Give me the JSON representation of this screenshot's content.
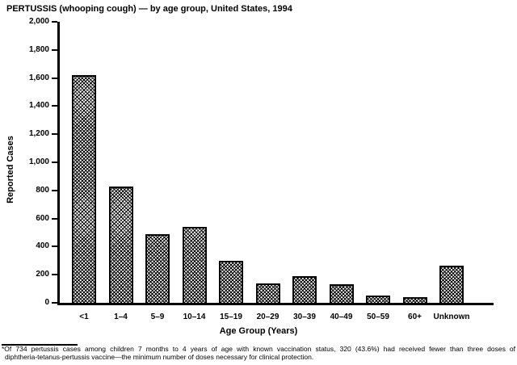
{
  "title": "PERTUSSIS (whooping cough) — by age group, United States, 1994",
  "chart_data": {
    "type": "bar",
    "title": "PERTUSSIS (whooping cough) — by age group, United States, 1994",
    "xlabel": "Age Group (Years)",
    "ylabel": "Reported Cases",
    "categories": [
      "<1",
      "1–4",
      "5–9",
      "10–14",
      "15–19",
      "20–29",
      "30–39",
      "40–49",
      "50–59",
      "60+",
      "Unknown"
    ],
    "values": [
      1620,
      830,
      490,
      540,
      300,
      140,
      190,
      130,
      50,
      40,
      265
    ],
    "ylim": [
      0,
      2000
    ],
    "ytick_interval": 200,
    "ytick_labels": [
      "0",
      "200",
      "400",
      "600",
      "800",
      "1,000",
      "1,200",
      "1,400",
      "1,600",
      "1,800",
      "2,000"
    ],
    "grid": false,
    "legend": "none",
    "bar_fill_style": "black-and-white crosshatch dither",
    "bar_border_color": "#000000",
    "background_color": "#ffffff",
    "text_color": "#000000"
  },
  "footnote": {
    "line1": "*Of 734 pertussis cases among children 7 months to 4 years of age with known vaccination status, 320 (43.6%) had received fewer than three doses of",
    "line2": "diphtheria-tetanus-pertussis vaccine—the minimum number of doses necessary for clinical protection."
  }
}
